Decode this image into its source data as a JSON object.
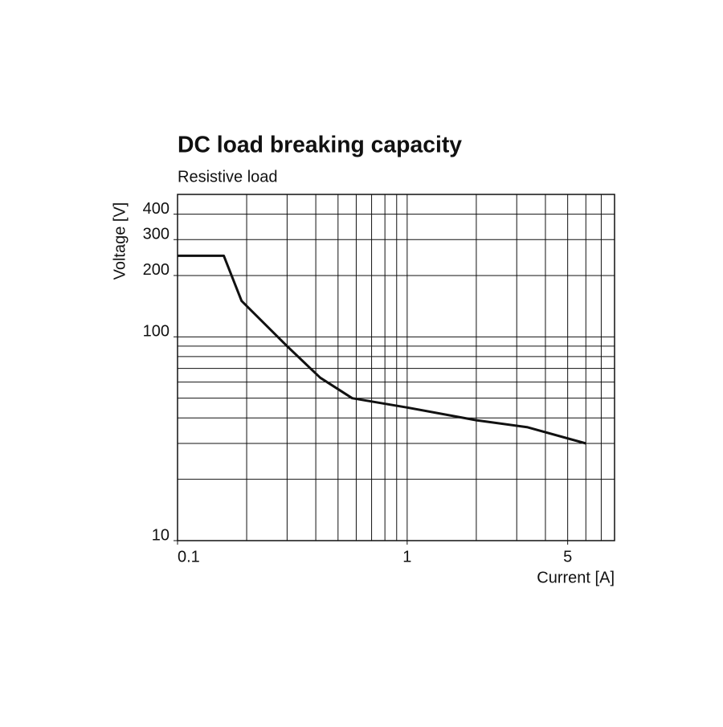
{
  "chart_data": {
    "type": "line",
    "title": "DC load breaking capacity",
    "subtitle": "Resistive load",
    "x_label": "Current [A]",
    "y_label": "Voltage [V]",
    "log_x": true,
    "log_y": true,
    "grid": true,
    "x": [
      0.1,
      0.159,
      0.19,
      0.3,
      0.418,
      0.576,
      1,
      2,
      3.35,
      6
    ],
    "series": [
      {
        "name": "Resistive load",
        "color": "#111111",
        "values": [
          250,
          250,
          150,
          90,
          63,
          50,
          45,
          39,
          36,
          30
        ]
      }
    ],
    "xlim": [
      0.1,
      8
    ],
    "ylim": [
      10,
      500
    ],
    "xticks": [
      0.1,
      1,
      5
    ],
    "yticks": [
      10,
      100,
      200,
      300,
      400
    ],
    "xgrid": [
      0.2,
      0.3,
      0.4,
      0.5,
      0.6,
      0.7,
      0.8,
      0.9,
      1,
      2,
      3,
      4,
      5,
      6,
      7
    ],
    "ygrid": [
      20,
      30,
      40,
      50,
      60,
      70,
      80,
      90,
      100,
      200,
      300,
      400
    ]
  }
}
